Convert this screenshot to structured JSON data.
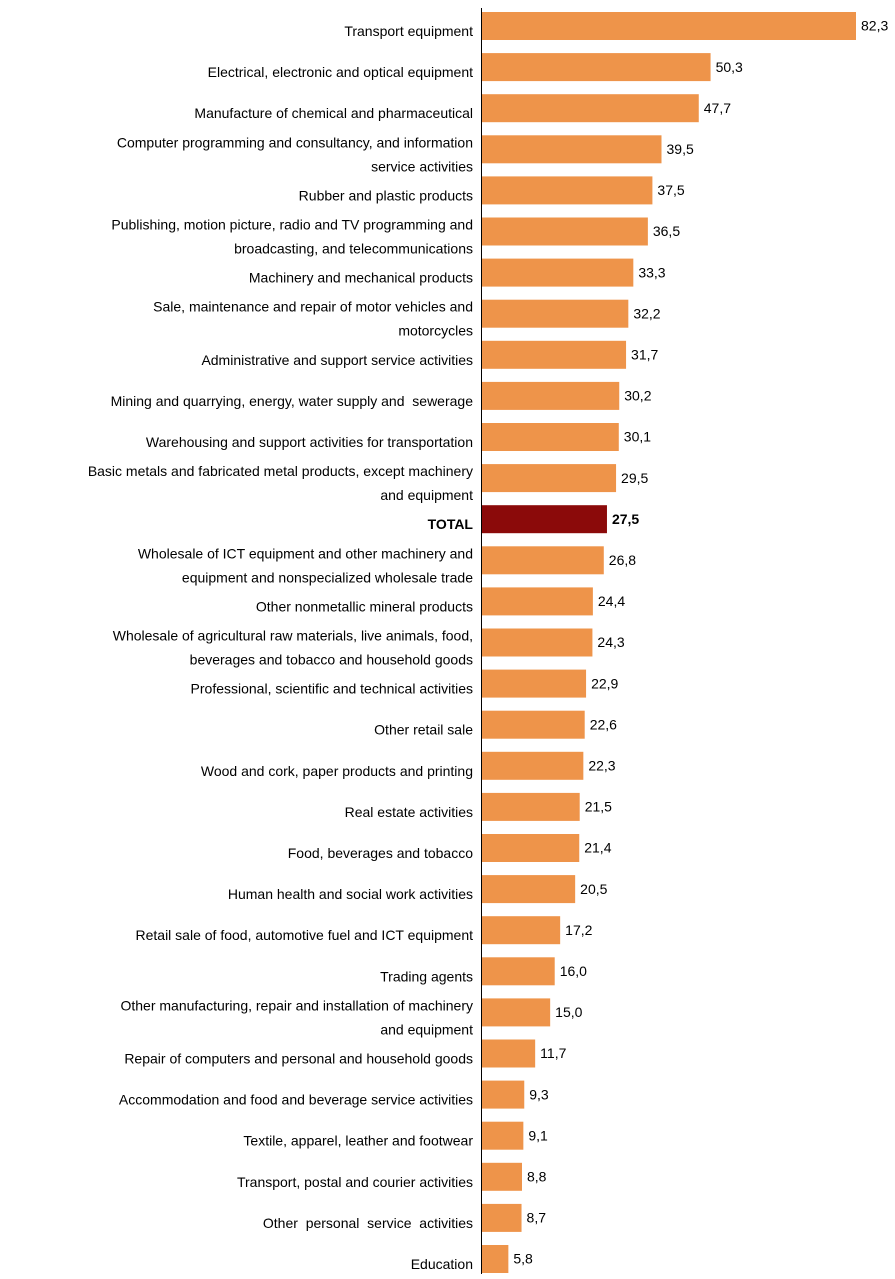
{
  "chart_data": {
    "type": "bar",
    "orientation": "horizontal",
    "title": "",
    "xlabel": "",
    "ylabel": "",
    "xlim": [
      0,
      82.3
    ],
    "grid": false,
    "legend": "none",
    "colors": {
      "bar": "#EE944A",
      "highlight": "#8B0A0A",
      "axis": "#000000",
      "text": "#000000"
    },
    "highlight_category": "TOTAL",
    "categories": [
      [
        "Transport equipment"
      ],
      [
        "Electrical, electronic and optical equipment"
      ],
      [
        "Manufacture of chemical and pharmaceutical"
      ],
      [
        "Computer programming and consultancy, and information",
        "service activities"
      ],
      [
        "Rubber and plastic products"
      ],
      [
        "Publishing, motion picture, radio and TV programming and",
        "broadcasting, and telecommunications"
      ],
      [
        "Machinery and mechanical products"
      ],
      [
        "Sale, maintenance and repair of motor vehicles and",
        "motorcycles"
      ],
      [
        "Administrative and support service activities"
      ],
      [
        "Mining and quarrying, energy, water supply and  sewerage"
      ],
      [
        "Warehousing and support activities for transportation"
      ],
      [
        "Basic metals and fabricated metal products, except machinery",
        "and equipment"
      ],
      [
        "TOTAL"
      ],
      [
        "Wholesale of ICT equipment and other machinery and",
        "equipment and nonspecialized wholesale trade"
      ],
      [
        "Other nonmetallic mineral products"
      ],
      [
        "Wholesale of agricultural raw materials, live animals, food,",
        "beverages and tobacco and household goods"
      ],
      [
        "Professional, scientific and technical activities"
      ],
      [
        "Other retail sale"
      ],
      [
        "Wood and cork, paper products and printing"
      ],
      [
        "Real estate activities"
      ],
      [
        "Food, beverages and tobacco"
      ],
      [
        "Human health and social work activities"
      ],
      [
        "Retail sale of food, automotive fuel and ICT equipment"
      ],
      [
        "Trading agents"
      ],
      [
        "Other manufacturing, repair and installation of machinery",
        "and equipment"
      ],
      [
        "Repair of computers and personal and household goods"
      ],
      [
        "Accommodation and food and beverage service activities"
      ],
      [
        "Textile, apparel, leather and footwear"
      ],
      [
        "Transport, postal and courier activities"
      ],
      [
        "Other  personal  service  activities"
      ],
      [
        "Education"
      ]
    ],
    "values": [
      82.3,
      50.3,
      47.7,
      39.5,
      37.5,
      36.5,
      33.3,
      32.2,
      31.7,
      30.2,
      30.1,
      29.5,
      27.5,
      26.8,
      24.4,
      24.3,
      22.9,
      22.6,
      22.3,
      21.5,
      21.4,
      20.5,
      17.2,
      16.0,
      15.0,
      11.7,
      9.3,
      9.1,
      8.8,
      8.7,
      5.8
    ],
    "value_labels": [
      "82,3",
      "50,3",
      "47,7",
      "39,5",
      "37,5",
      "36,5",
      "33,3",
      "32,2",
      "31,7",
      "30,2",
      "30,1",
      "29,5",
      "27,5",
      "26,8",
      "24,4",
      "24,3",
      "22,9",
      "22,6",
      "22,3",
      "21,5",
      "21,4",
      "20,5",
      "17,2",
      "16,0",
      "15,0",
      "11,7",
      "9,3",
      "9,1",
      "8,8",
      "8,7",
      "5,8"
    ]
  }
}
